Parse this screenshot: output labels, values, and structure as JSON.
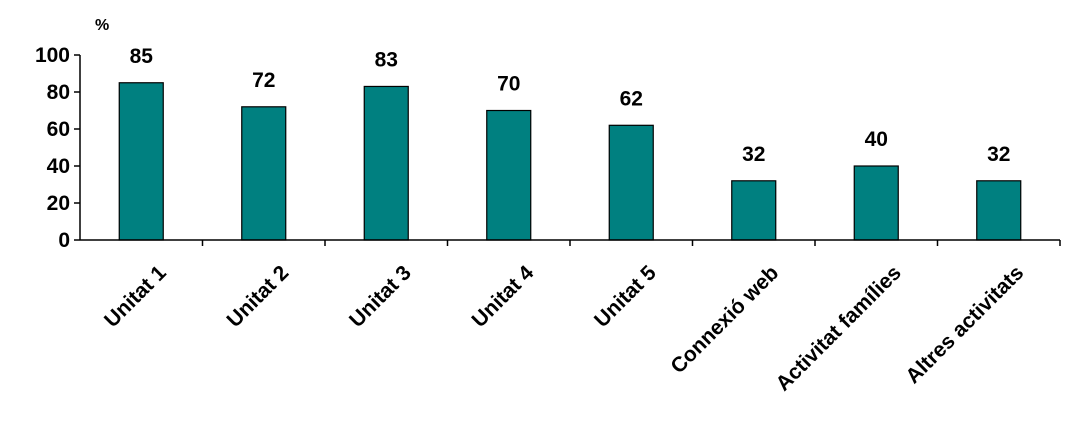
{
  "chart_data": {
    "type": "bar",
    "unit_label": "%",
    "categories": [
      "Unitat 1",
      "Unitat 2",
      "Unitat 3",
      "Unitat 4",
      "Unitat 5",
      "Connexió web",
      "Activitat famílies",
      "Altres activitats"
    ],
    "values": [
      85,
      72,
      83,
      70,
      62,
      32,
      40,
      32
    ],
    "data_labels": [
      "85",
      "72",
      "83",
      "70",
      "62",
      "32",
      "40",
      "32"
    ],
    "ylim": [
      0,
      100
    ],
    "yticks": [
      "0",
      "20",
      "40",
      "60",
      "80",
      "100"
    ],
    "grid": false,
    "legend": "none",
    "bar_color": "#008080",
    "bar_stroke": "#000000"
  }
}
